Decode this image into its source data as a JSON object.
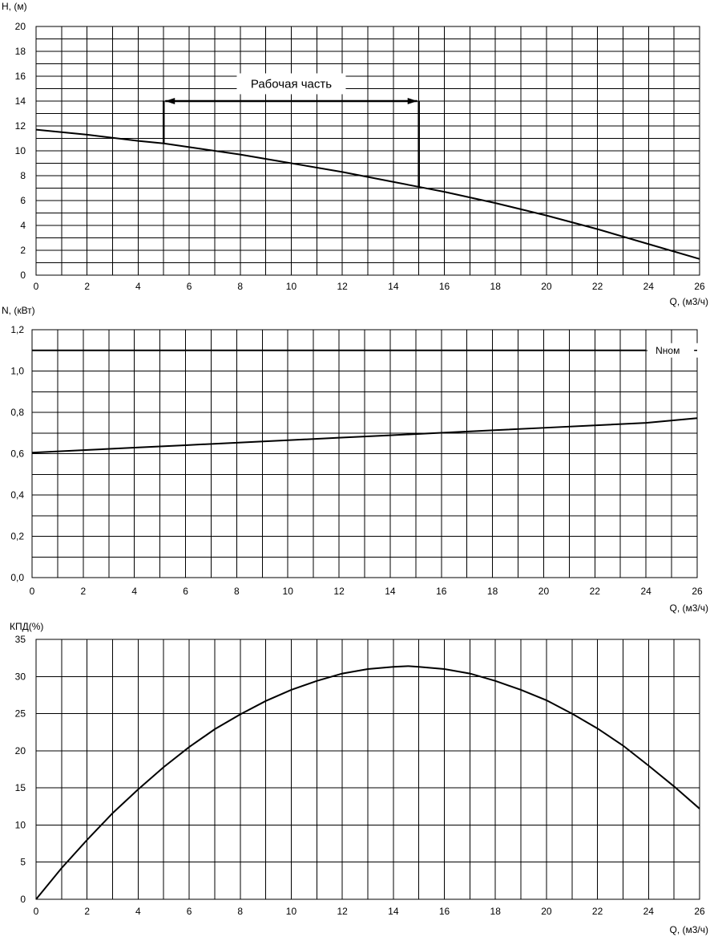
{
  "chart_data": [
    {
      "type": "line",
      "title": "",
      "ylabel": "H, (м)",
      "xlabel": "Q, (м3/ч)",
      "xlim": [
        0,
        26
      ],
      "ylim": [
        0,
        20
      ],
      "x_ticks": [
        "0",
        "2",
        "4",
        "6",
        "8",
        "10",
        "12",
        "14",
        "16",
        "18",
        "20",
        "22",
        "24",
        "26"
      ],
      "y_ticks": [
        "0",
        "2",
        "4",
        "6",
        "8",
        "10",
        "12",
        "14",
        "16",
        "18",
        "20"
      ],
      "grid": true,
      "series": [
        {
          "x": [
            0,
            2,
            4,
            5,
            6,
            8,
            10,
            12,
            14,
            15,
            16,
            18,
            20,
            22,
            24,
            26
          ],
          "y": [
            11.7,
            11.3,
            10.8,
            10.6,
            10.3,
            9.7,
            9.0,
            8.3,
            7.5,
            7.1,
            6.7,
            5.8,
            4.8,
            3.7,
            2.5,
            1.3
          ]
        }
      ],
      "annotation": {
        "text": "Рабочая часть",
        "x_start": 5,
        "x_end": 15,
        "y_level": 14
      }
    },
    {
      "type": "line",
      "title": "",
      "ylabel": "N, (кВт)",
      "xlabel": "Q, (м3/ч)",
      "xlim": [
        0,
        26
      ],
      "ylim": [
        0,
        1.2
      ],
      "x_ticks": [
        "0",
        "2",
        "4",
        "6",
        "8",
        "10",
        "12",
        "14",
        "16",
        "18",
        "20",
        "22",
        "24",
        "26"
      ],
      "y_ticks": [
        "0,0",
        "0,2",
        "0,4",
        "0,6",
        "0,8",
        "1,0",
        "1,2"
      ],
      "grid": true,
      "series": [
        {
          "x": [
            0,
            2,
            4,
            6,
            8,
            10,
            12,
            14,
            16,
            18,
            20,
            22,
            24,
            26
          ],
          "y": [
            0.605,
            0.617,
            0.629,
            0.641,
            0.653,
            0.665,
            0.677,
            0.689,
            0.701,
            0.713,
            0.725,
            0.737,
            0.749,
            0.772
          ]
        },
        {
          "name": "Nном",
          "x": [
            0,
            24
          ],
          "y": [
            1.1,
            1.1
          ]
        }
      ]
    },
    {
      "type": "line",
      "title": "",
      "ylabel": "КПД(%)",
      "xlabel": "Q, (м3/ч)",
      "xlim": [
        0,
        26
      ],
      "ylim": [
        0,
        35
      ],
      "x_ticks": [
        "0",
        "2",
        "4",
        "6",
        "8",
        "10",
        "12",
        "14",
        "16",
        "18",
        "20",
        "22",
        "24",
        "26"
      ],
      "y_ticks": [
        "0",
        "5",
        "10",
        "15",
        "20",
        "25",
        "30",
        "35"
      ],
      "grid": true,
      "series": [
        {
          "x": [
            0,
            1,
            2,
            3,
            4,
            5,
            6,
            7,
            8,
            9,
            10,
            11,
            12,
            13,
            14,
            14.6,
            15,
            16,
            17,
            18,
            19,
            20,
            21,
            22,
            23,
            24,
            25,
            26
          ],
          "y": [
            0,
            4.2,
            8.0,
            11.6,
            14.8,
            17.8,
            20.5,
            22.9,
            24.9,
            26.7,
            28.2,
            29.4,
            30.4,
            31.0,
            31.3,
            31.4,
            31.3,
            31.0,
            30.4,
            29.4,
            28.2,
            26.8,
            25.0,
            23.0,
            20.7,
            18.0,
            15.2,
            12.2
          ]
        }
      ]
    }
  ]
}
